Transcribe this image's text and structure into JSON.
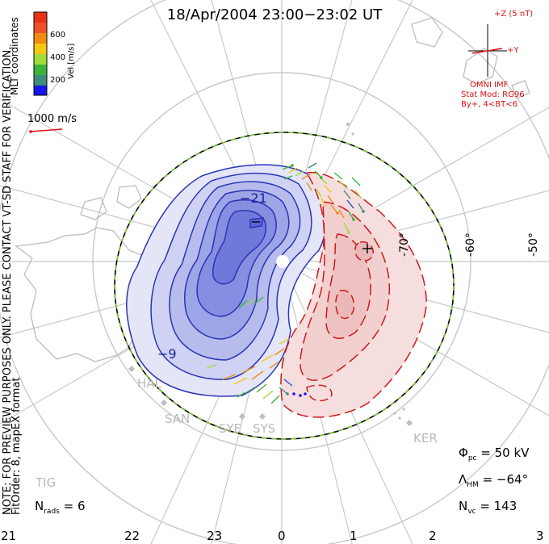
{
  "title": "18/Apr/2004 23:00−23:02 UT",
  "colorbar": {
    "label": "Vel [m/s]",
    "ticks": [
      "600",
      "400",
      "200"
    ],
    "colors": [
      "#e83214",
      "#f08c14",
      "#f5c814",
      "#a0dc3c",
      "#3cb43c",
      "#3c8c78",
      "#2850c8",
      "#1414f0"
    ]
  },
  "coords_label": "MLT coordinates",
  "ref_vector": "1000 m/s",
  "imf": {
    "z_label": "+Z (5 nT)",
    "y_label": "+Y",
    "source": "OMNI IMF",
    "model": "Stat Mod: RG96",
    "condition": "By+, 4<BT<6"
  },
  "note": "NOTE: FOR PREVIEW PURPOSES ONLY. PLEASE CONTACT VT-SD STAFF FOR VERIFICATION.",
  "fit": "FitOrder: 8, mapEX format",
  "contours": {
    "neg_label": "−21",
    "neg_label2": "−9"
  },
  "lat_labels": [
    "-70°",
    "-60°",
    "-50°"
  ],
  "sites": [
    "HAL",
    "SAN",
    "SYE",
    "SYS",
    "KER",
    "TIG"
  ],
  "stats": {
    "phi": "50 kV",
    "lambda": "−64°",
    "nvc": "143",
    "nrads": "6"
  },
  "mlt_ticks": [
    "21",
    "22",
    "23",
    "0",
    "1",
    "2",
    "3"
  ]
}
